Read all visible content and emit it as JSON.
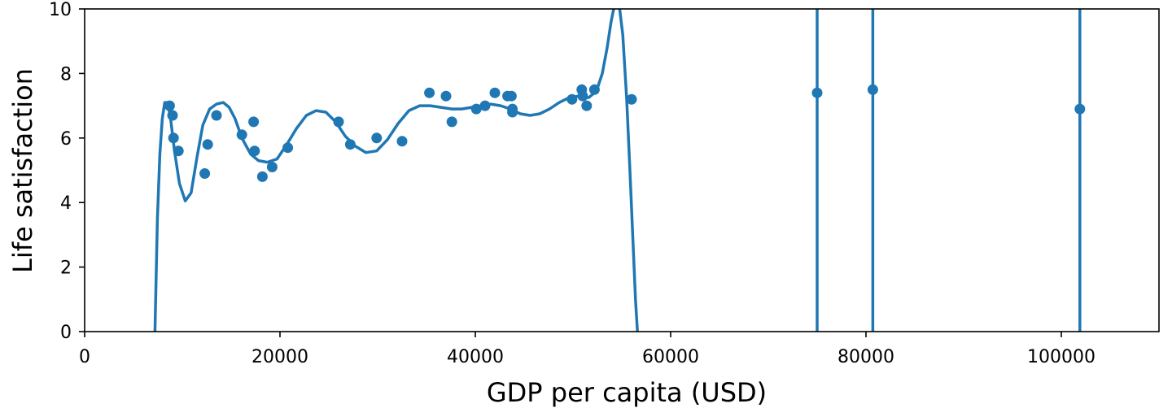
{
  "chart_data": {
    "type": "scatter",
    "title": "",
    "xlabel": "GDP per capita (USD)",
    "ylabel": "Life satisfaction",
    "xlim": [
      0,
      110000
    ],
    "ylim": [
      0,
      10
    ],
    "xticks": [
      0,
      20000,
      40000,
      60000,
      80000,
      100000
    ],
    "xtick_labels": [
      "0",
      "20000",
      "40000",
      "60000",
      "80000",
      "100000"
    ],
    "yticks": [
      0,
      2,
      4,
      6,
      8,
      10
    ],
    "ytick_labels": [
      "0",
      "2",
      "4",
      "6",
      "8",
      "10"
    ],
    "grid": false,
    "color": "#1f77b4",
    "points": [
      {
        "x": 8700,
        "y": 7.0
      },
      {
        "x": 9000,
        "y": 6.7
      },
      {
        "x": 9100,
        "y": 6.0
      },
      {
        "x": 9600,
        "y": 5.6
      },
      {
        "x": 12300,
        "y": 4.9
      },
      {
        "x": 12600,
        "y": 5.8
      },
      {
        "x": 13500,
        "y": 6.7
      },
      {
        "x": 16100,
        "y": 6.1
      },
      {
        "x": 17300,
        "y": 6.5
      },
      {
        "x": 17400,
        "y": 5.6
      },
      {
        "x": 18200,
        "y": 4.8
      },
      {
        "x": 19200,
        "y": 5.1
      },
      {
        "x": 20800,
        "y": 5.7
      },
      {
        "x": 26000,
        "y": 6.5
      },
      {
        "x": 27200,
        "y": 5.8
      },
      {
        "x": 29900,
        "y": 6.0
      },
      {
        "x": 32500,
        "y": 5.9
      },
      {
        "x": 35300,
        "y": 7.4
      },
      {
        "x": 37000,
        "y": 7.3
      },
      {
        "x": 37600,
        "y": 6.5
      },
      {
        "x": 40100,
        "y": 6.9
      },
      {
        "x": 41000,
        "y": 7.0
      },
      {
        "x": 42000,
        "y": 7.4
      },
      {
        "x": 43300,
        "y": 7.3
      },
      {
        "x": 43700,
        "y": 7.3
      },
      {
        "x": 43800,
        "y": 6.9
      },
      {
        "x": 43800,
        "y": 6.8
      },
      {
        "x": 49900,
        "y": 7.2
      },
      {
        "x": 50900,
        "y": 7.5
      },
      {
        "x": 51000,
        "y": 7.3
      },
      {
        "x": 51400,
        "y": 7.0
      },
      {
        "x": 52200,
        "y": 7.5
      },
      {
        "x": 56000,
        "y": 7.2
      },
      {
        "x": 75000,
        "y": 7.4
      },
      {
        "x": 80700,
        "y": 7.5
      },
      {
        "x": 101900,
        "y": 6.9
      }
    ],
    "series": [
      {
        "type": "line",
        "x": [
          7200,
          7450,
          7700,
          7950,
          8200,
          8500,
          8800,
          9200,
          9700,
          10300,
          10900,
          11500,
          12100,
          12800,
          13500,
          14200,
          14800,
          15400,
          16100,
          17000,
          17800,
          18700,
          19700,
          20700,
          21700,
          22700,
          23700,
          24700,
          25700,
          26700,
          27700,
          28800,
          29900,
          31000,
          32100,
          33200,
          34300,
          35400,
          36500,
          37600,
          38600,
          39600,
          40600,
          41600,
          42600,
          43600,
          44600,
          45600,
          46600,
          47600,
          48600,
          49600,
          50600,
          51600,
          52400,
          53000,
          53500,
          53900,
          54300,
          54700,
          55100,
          55500,
          55800,
          56000,
          56200,
          56400,
          56600
        ],
        "y": [
          0.0,
          3.5,
          5.5,
          6.6,
          7.1,
          7.1,
          6.6,
          5.6,
          4.6,
          4.05,
          4.3,
          5.4,
          6.4,
          6.9,
          7.05,
          7.1,
          6.95,
          6.6,
          6.0,
          5.5,
          5.3,
          5.25,
          5.35,
          5.8,
          6.3,
          6.7,
          6.85,
          6.8,
          6.5,
          6.05,
          5.75,
          5.55,
          5.6,
          5.95,
          6.45,
          6.85,
          7.0,
          7.0,
          6.95,
          6.9,
          6.9,
          6.95,
          7.0,
          7.05,
          7.0,
          6.9,
          6.75,
          6.7,
          6.75,
          6.9,
          7.1,
          7.25,
          7.3,
          7.25,
          7.45,
          8.0,
          8.8,
          9.6,
          10.2,
          10.2,
          9.2,
          7.2,
          5.2,
          3.8,
          2.4,
          1.0,
          0.0
        ]
      },
      {
        "type": "vline",
        "x": 75000
      },
      {
        "type": "vline",
        "x": 80700
      },
      {
        "type": "vline",
        "x": 101900
      }
    ]
  }
}
